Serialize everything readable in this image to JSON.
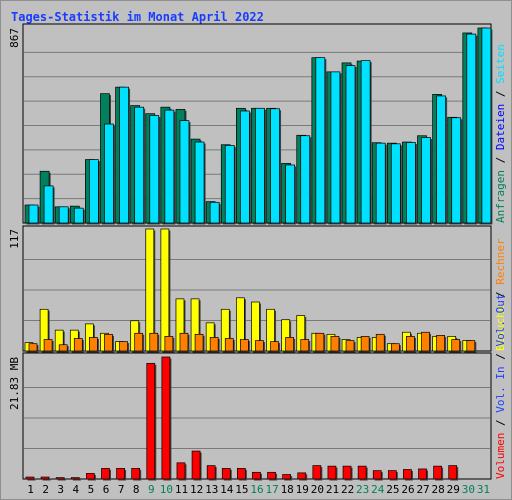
{
  "title": "Tages-Statistik im Monat April 2022",
  "chart_data": {
    "type": "bar",
    "title": "Tages-Statistik im Monat April 2022",
    "categories": [
      "1",
      "2",
      "3",
      "4",
      "5",
      "6",
      "7",
      "8",
      "9",
      "10",
      "11",
      "12",
      "13",
      "14",
      "15",
      "16",
      "17",
      "18",
      "19",
      "20",
      "21",
      "22",
      "23",
      "24",
      "25",
      "26",
      "27",
      "28",
      "29",
      "30",
      "31"
    ],
    "weekend_days": [
      "9",
      "10",
      "16",
      "17",
      "23",
      "24",
      "30",
      "31"
    ],
    "colors": {
      "anfragen": "#00805c",
      "dateien": "#0000ff",
      "seiten": "#00e0ff",
      "besuche": "#ffff00",
      "rechner": "#ff8000",
      "vol_out": "#2040ff",
      "volumen": "#ff0000",
      "weekend_label": "#00805c",
      "weekday_label": "#000000"
    },
    "panels": [
      {
        "name": "hits",
        "ylabel": "867",
        "ymax": 867,
        "ylim": [
          0,
          867
        ],
        "right_label": [
          {
            "text": "Anfragen",
            "color": "#00805c"
          },
          {
            "text": "Dateien",
            "color": "#0000ff"
          },
          {
            "text": "Seiten",
            "color": "#00e0ff"
          }
        ],
        "series": [
          {
            "name": "Anfragen",
            "values": [
              80,
              230,
              72,
              75,
              282,
              575,
              604,
              522,
              486,
              515,
              505,
              373,
              95,
              348,
              510,
              510,
              510,
              265,
              390,
              735,
              672,
              712,
              720,
              357,
              355,
              360,
              388,
              572,
              470,
              845,
              867
            ]
          },
          {
            "name": "Seiten",
            "values": [
              80,
              165,
              72,
              66,
              282,
              440,
              604,
              515,
              478,
              502,
              455,
              360,
              92,
              345,
              498,
              510,
              508,
              258,
              388,
              735,
              672,
              700,
              722,
              355,
              352,
              358,
              380,
              565,
              468,
              840,
              867
            ]
          }
        ]
      },
      {
        "name": "visits",
        "ylabel": "117",
        "ymax": 117,
        "ylim": [
          0,
          117
        ],
        "right_label": [
          {
            "text": "Besuche",
            "color": "#ffff00"
          },
          {
            "text": "Rechner",
            "color": "#ff8000"
          }
        ],
        "series": [
          {
            "name": "Besuche",
            "values": [
              8,
              40,
              20,
              20,
              26,
              17,
              9,
              29,
              117,
              117,
              50,
              50,
              27,
              40,
              51,
              47,
              40,
              30,
              34,
              17,
              16,
              11,
              13,
              13,
              7,
              18,
              17,
              14,
              14,
              10,
              0
            ]
          },
          {
            "name": "Rechner",
            "values": [
              7,
              11,
              6,
              12,
              13,
              16,
              9,
              17,
              17,
              14,
              17,
              16,
              13,
              12,
              11,
              10,
              9,
              13,
              11,
              17,
              14,
              10,
              14,
              16,
              7,
              14,
              18,
              15,
              11,
              10,
              0
            ]
          }
        ]
      },
      {
        "name": "volume",
        "ylabel": "21.83 MB",
        "ymax": 21.83,
        "ylim": [
          0,
          21.83
        ],
        "right_label": [
          {
            "text": "Volumen",
            "color": "#ff0000"
          },
          {
            "text": "Vol. In",
            "color": "#2040ff"
          },
          {
            "text": "Vol. Out",
            "color": "#2040ff"
          }
        ],
        "series": [
          {
            "name": "Volumen",
            "values": [
              0.35,
              0.35,
              0.25,
              0.25,
              1.0,
              1.9,
              1.9,
              1.9,
              20.7,
              21.83,
              2.9,
              5.0,
              2.4,
              1.9,
              1.9,
              1.2,
              1.2,
              0.8,
              1.1,
              2.4,
              2.3,
              2.3,
              2.3,
              1.5,
              1.5,
              1.7,
              1.8,
              2.3,
              2.4,
              0,
              0
            ]
          }
        ]
      }
    ],
    "grid": true
  }
}
